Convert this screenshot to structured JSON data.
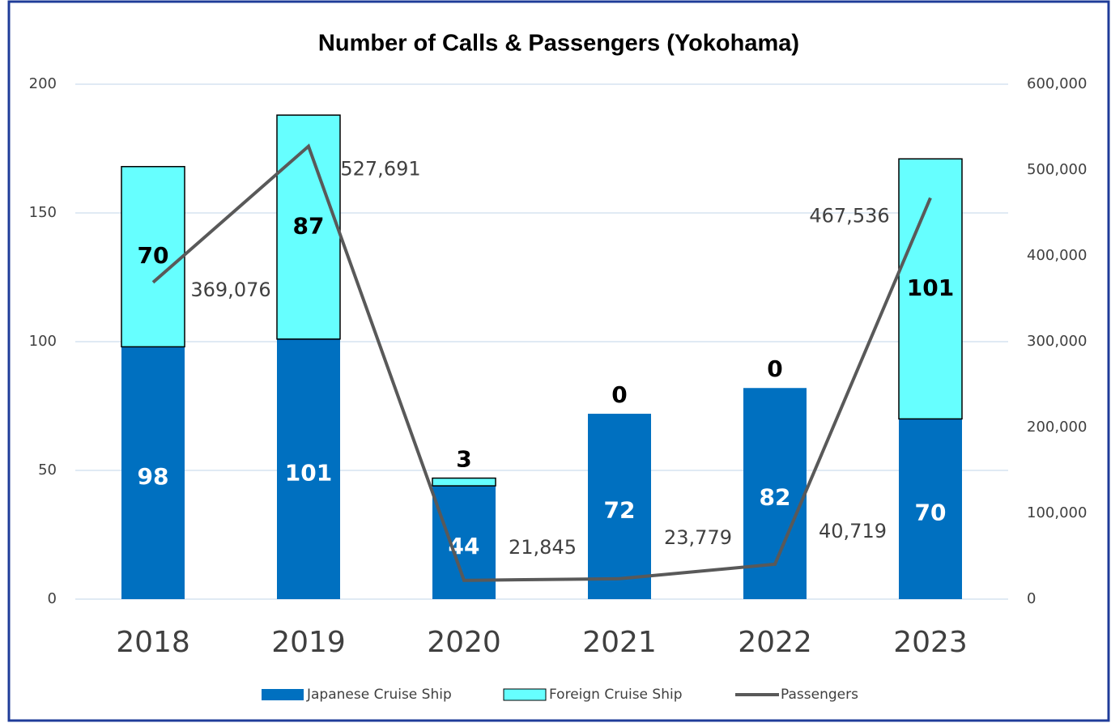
{
  "chart_data": {
    "type": "bar-line",
    "title": "Number of Calls & Passengers (Yokohama)",
    "categories": [
      "2018",
      "2019",
      "2020",
      "2021",
      "2022",
      "2023"
    ],
    "series": [
      {
        "name": "Japanese Cruise Ship",
        "color": "#0070c0",
        "kind": "bar",
        "values": [
          98,
          101,
          44,
          72,
          82,
          70
        ]
      },
      {
        "name": "Foreign Cruise Ship",
        "color": "#66ffff",
        "kind": "bar",
        "values": [
          70,
          87,
          3,
          0,
          0,
          101
        ]
      },
      {
        "name": "Passengers",
        "color": "#595959",
        "kind": "line",
        "axis": "y2",
        "values": [
          369076,
          527691,
          21845,
          23779,
          40719,
          467536
        ],
        "value_labels": [
          "369,076",
          "527,691",
          "21,845",
          "23,779",
          "40,719",
          "467,536"
        ]
      }
    ],
    "stacked": true,
    "ylim": [
      0,
      200
    ],
    "yticks": [
      0,
      50,
      100,
      150,
      200
    ],
    "y2lim": [
      0,
      600000
    ],
    "y2ticks": [
      0,
      {
        "value": 100000,
        "label": "100,000"
      },
      {
        "value": 200000,
        "label": "200,000"
      },
      {
        "value": 300000,
        "label": "300,000"
      },
      {
        "value": 400000,
        "label": "400,000"
      },
      {
        "value": 500000,
        "label": "500,000"
      },
      {
        "value": 600000,
        "label": "600,000"
      }
    ],
    "grid": true,
    "legend": "bottom"
  }
}
